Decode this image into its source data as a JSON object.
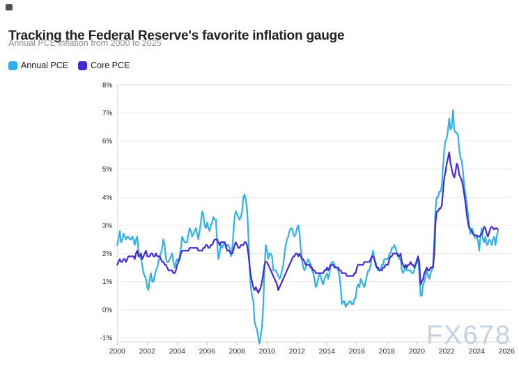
{
  "header": {
    "title": "Tracking the Federal Reserve's favorite inflation gauge",
    "subtitle": "Annual PCE inflation from 2000 to 2025"
  },
  "legend": {
    "items": [
      {
        "label": "Annual PCE",
        "color": "#2fb0e8"
      },
      {
        "label": "Core PCE",
        "color": "#4229d8"
      }
    ]
  },
  "watermark": {
    "text": "FX678",
    "color": "#b9cade"
  },
  "chart_data": {
    "type": "line",
    "title": "Tracking the Federal Reserve's favorite inflation gauge",
    "subtitle": "Annual PCE inflation from 2000 to 2025",
    "xlabel": "",
    "ylabel": "",
    "x_start_year": 2000,
    "points_per_year": 12,
    "x_tick_years": [
      2000,
      2002,
      2004,
      2006,
      2008,
      2010,
      2012,
      2014,
      2016,
      2018,
      2020,
      2022,
      2024,
      2026
    ],
    "y_axis_labels": [
      "8%",
      "7%",
      "6%",
      "5%",
      "4%",
      "3%",
      "2%",
      "1%",
      "0%",
      "-1%"
    ],
    "ylim": [
      -1,
      8
    ],
    "grid": true,
    "legend_position": "top-left",
    "series": [
      {
        "name": "Annual PCE",
        "color": "#2fb0e8",
        "values": [
          2.3,
          2.5,
          2.8,
          2.4,
          2.5,
          2.7,
          2.6,
          2.5,
          2.6,
          2.6,
          2.5,
          2.5,
          2.6,
          2.5,
          2.3,
          2.5,
          2.6,
          2.1,
          1.9,
          1.8,
          1.6,
          1.3,
          1.2,
          1.1,
          0.8,
          0.7,
          1.1,
          1.3,
          1.0,
          1.0,
          1.2,
          1.4,
          1.5,
          1.7,
          1.9,
          2.0,
          2.2,
          2.5,
          2.3,
          1.8,
          1.7,
          1.7,
          1.8,
          1.9,
          2.0,
          1.7,
          1.5,
          1.7,
          1.8,
          1.7,
          1.9,
          2.2,
          2.6,
          2.5,
          2.4,
          2.4,
          2.4,
          2.7,
          2.9,
          2.8,
          2.6,
          2.7,
          2.8,
          2.9,
          2.7,
          2.5,
          2.8,
          3.1,
          3.5,
          3.4,
          3.0,
          2.9,
          3.1,
          2.9,
          2.8,
          3.0,
          3.1,
          3.3,
          3.2,
          3.2,
          2.4,
          1.8,
          2.0,
          2.3,
          2.2,
          2.3,
          2.4,
          2.2,
          2.3,
          2.3,
          2.2,
          1.9,
          2.1,
          2.7,
          3.3,
          3.5,
          3.4,
          3.3,
          3.2,
          3.3,
          3.5,
          4.0,
          4.1,
          3.9,
          3.6,
          2.7,
          1.5,
          0.8,
          0.5,
          0.3,
          -0.4,
          -0.6,
          -0.7,
          -1.0,
          -1.2,
          -0.9,
          -0.6,
          0.2,
          1.5,
          2.3,
          2.1,
          1.8,
          2.0,
          2.0,
          1.9,
          1.4,
          1.4,
          1.4,
          1.3,
          1.2,
          1.1,
          1.2,
          1.4,
          1.6,
          2.0,
          2.3,
          2.5,
          2.6,
          2.8,
          2.9,
          2.9,
          2.7,
          2.6,
          2.7,
          2.9,
          3.0,
          2.7,
          2.2,
          1.8,
          1.5,
          1.4,
          1.5,
          1.7,
          1.8,
          1.7,
          1.6,
          1.4,
          1.3,
          1.1,
          0.8,
          0.9,
          1.1,
          1.3,
          1.2,
          1.0,
          0.9,
          1.1,
          1.2,
          1.3,
          1.1,
          1.3,
          1.6,
          1.7,
          1.7,
          1.6,
          1.5,
          1.5,
          1.4,
          1.2,
          0.8,
          0.2,
          0.3,
          0.3,
          0.1,
          0.2,
          0.2,
          0.3,
          0.3,
          0.2,
          0.2,
          0.4,
          0.4,
          0.8,
          0.9,
          0.8,
          1.1,
          1.0,
          0.9,
          0.8,
          1.0,
          1.2,
          1.4,
          1.4,
          1.6,
          1.9,
          2.1,
          1.8,
          1.7,
          1.5,
          1.4,
          1.4,
          1.4,
          1.6,
          1.6,
          1.8,
          1.8,
          1.8,
          1.8,
          2.0,
          2.0,
          2.2,
          2.2,
          2.3,
          2.2,
          2.0,
          2.0,
          1.8,
          1.8,
          1.4,
          1.3,
          1.4,
          1.5,
          1.4,
          1.4,
          1.4,
          1.4,
          1.3,
          1.3,
          1.4,
          1.6,
          1.8,
          1.8,
          1.3,
          0.5,
          0.5,
          0.9,
          1.0,
          1.2,
          1.4,
          1.2,
          1.1,
          1.3,
          1.4,
          1.6,
          2.5,
          3.6,
          4.0,
          4.0,
          4.2,
          4.2,
          4.4,
          5.1,
          5.7,
          6.0,
          6.1,
          6.4,
          6.8,
          6.4,
          6.5,
          7.1,
          6.4,
          6.3,
          6.3,
          6.2,
          5.7,
          5.4,
          5.3,
          4.9,
          4.4,
          4.1,
          3.8,
          3.4,
          3.0,
          2.7,
          2.9,
          2.8,
          2.6,
          2.55,
          2.6,
          2.45,
          2.1,
          2.6,
          2.9,
          2.5,
          2.4,
          2.6,
          2.3,
          2.35,
          2.5,
          2.45,
          2.3,
          2.5,
          2.6,
          2.3,
          2.6,
          2.8
        ]
      },
      {
        "name": "Core PCE",
        "color": "#4229d8",
        "values": [
          1.6,
          1.7,
          1.8,
          1.7,
          1.7,
          1.8,
          1.8,
          1.7,
          1.8,
          1.9,
          1.9,
          1.9,
          1.9,
          1.9,
          1.8,
          2.0,
          2.1,
          1.9,
          1.9,
          2.0,
          1.8,
          1.9,
          2.0,
          2.1,
          1.9,
          1.9,
          1.9,
          2.0,
          2.0,
          1.9,
          1.9,
          2.0,
          1.9,
          1.9,
          1.9,
          1.8,
          1.7,
          1.7,
          1.6,
          1.6,
          1.5,
          1.4,
          1.4,
          1.4,
          1.4,
          1.3,
          1.3,
          1.4,
          1.6,
          1.7,
          1.8,
          2.0,
          2.1,
          2.1,
          2.1,
          2.1,
          2.1,
          2.1,
          2.2,
          2.2,
          2.2,
          2.2,
          2.2,
          2.2,
          2.2,
          2.1,
          2.1,
          2.1,
          2.1,
          2.2,
          2.2,
          2.3,
          2.3,
          2.2,
          2.2,
          2.3,
          2.3,
          2.4,
          2.5,
          2.5,
          2.5,
          2.4,
          2.3,
          2.4,
          2.4,
          2.4,
          2.4,
          2.3,
          2.1,
          2.1,
          2.1,
          2.0,
          2.0,
          2.1,
          2.3,
          2.4,
          2.3,
          2.2,
          2.2,
          2.3,
          2.3,
          2.3,
          2.4,
          2.4,
          2.3,
          2.0,
          1.6,
          1.2,
          1.0,
          0.8,
          0.7,
          0.8,
          0.7,
          0.6,
          0.7,
          0.8,
          1.0,
          1.3,
          1.6,
          1.7,
          1.7,
          1.6,
          1.5,
          1.4,
          1.3,
          1.2,
          1.1,
          1.0,
          0.9,
          0.7,
          0.8,
          0.9,
          1.0,
          1.1,
          1.2,
          1.3,
          1.4,
          1.5,
          1.6,
          1.7,
          1.8,
          1.9,
          1.9,
          2.0,
          2.0,
          1.9,
          2.0,
          1.9,
          1.8,
          1.8,
          1.7,
          1.6,
          1.6,
          1.6,
          1.6,
          1.5,
          1.5,
          1.4,
          1.4,
          1.3,
          1.3,
          1.3,
          1.3,
          1.3,
          1.3,
          1.3,
          1.4,
          1.4,
          1.5,
          1.4,
          1.5,
          1.6,
          1.6,
          1.6,
          1.5,
          1.5,
          1.5,
          1.5,
          1.4,
          1.4,
          1.3,
          1.3,
          1.3,
          1.3,
          1.2,
          1.2,
          1.2,
          1.2,
          1.2,
          1.2,
          1.3,
          1.3,
          1.5,
          1.6,
          1.6,
          1.6,
          1.6,
          1.6,
          1.7,
          1.7,
          1.7,
          1.7,
          1.7,
          1.8,
          1.9,
          1.9,
          1.8,
          1.6,
          1.5,
          1.5,
          1.4,
          1.4,
          1.4,
          1.5,
          1.5,
          1.6,
          1.6,
          1.6,
          1.8,
          1.9,
          1.9,
          2.0,
          2.0,
          2.0,
          2.0,
          1.9,
          1.9,
          2.0,
          1.7,
          1.6,
          1.5,
          1.6,
          1.5,
          1.6,
          1.6,
          1.7,
          1.6,
          1.6,
          1.5,
          1.6,
          1.7,
          1.9,
          1.7,
          0.9,
          1.0,
          1.1,
          1.3,
          1.4,
          1.5,
          1.4,
          1.4,
          1.5,
          1.5,
          1.5,
          2.0,
          3.1,
          3.5,
          3.5,
          3.6,
          3.6,
          3.7,
          4.2,
          4.7,
          4.9,
          5.2,
          5.4,
          5.6,
          5.2,
          5.0,
          4.8,
          4.7,
          4.9,
          5.2,
          5.1,
          4.8,
          4.7,
          4.6,
          4.4,
          4.1,
          3.8,
          3.4,
          3.1,
          2.9,
          2.85,
          2.8,
          2.7,
          2.65,
          2.65,
          2.65,
          2.6,
          2.6,
          2.65,
          2.7,
          2.8,
          2.95,
          2.9,
          2.7,
          2.6,
          2.75,
          2.9,
          2.95,
          2.9,
          2.85,
          2.9,
          2.9,
          2.85
        ]
      }
    ]
  }
}
